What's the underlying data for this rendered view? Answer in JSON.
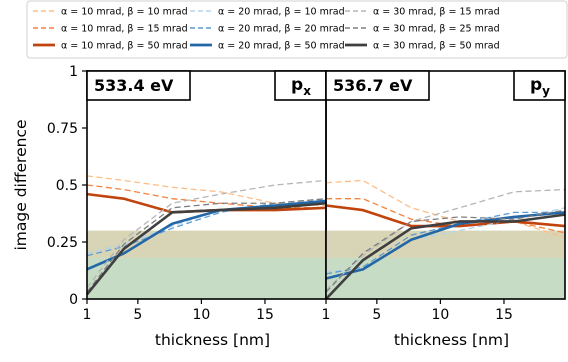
{
  "chart_data": [
    {
      "type": "line",
      "panel_label": "533.4 eV",
      "orbital_label": {
        "base": "p",
        "sub": "x"
      },
      "xlabel": "thickness [nm]",
      "ylabel": "image difference",
      "xlim": [
        1,
        19.8
      ],
      "ylim": [
        0,
        1
      ],
      "xticks": [
        1,
        5,
        10,
        15
      ],
      "yticks": [
        0,
        0.25,
        0.5,
        0.75,
        1
      ],
      "ytick_labels": [
        "0",
        "0.25",
        "0.5",
        "0.75",
        "1"
      ],
      "grid": false,
      "bands": [
        {
          "from": 0,
          "to": 0.3,
          "color": "#d8d5b7"
        },
        {
          "from": 0,
          "to": 0.18,
          "color": "#c7dcc5"
        }
      ],
      "x": [
        1,
        3.9,
        7.7,
        11.5,
        15.8,
        19.8
      ],
      "series": [
        {
          "name": "α = 10 mrad, β = 10 mrad",
          "color": "#fdbe85",
          "dash": "dashed",
          "width": 1.3,
          "values": [
            0.54,
            0.52,
            0.49,
            0.47,
            0.42,
            0.41
          ]
        },
        {
          "name": "α = 10 mrad, β = 15 mrad",
          "color": "#f4823c",
          "dash": "dashed",
          "width": 1.3,
          "values": [
            0.5,
            0.48,
            0.44,
            0.42,
            0.4,
            0.4
          ]
        },
        {
          "name": "α = 10 mrad, β = 50 mrad",
          "color": "#c1440e",
          "dash": "solid",
          "width": 2.6,
          "values": [
            0.46,
            0.44,
            0.38,
            0.39,
            0.39,
            0.4
          ]
        },
        {
          "name": "α = 20 mrad, β = 10 mrad",
          "color": "#b3d3ea",
          "dash": "dashed",
          "width": 1.3,
          "values": [
            0.2,
            0.24,
            0.32,
            0.39,
            0.4,
            0.44
          ]
        },
        {
          "name": "α = 20 mrad, β = 20 mrad",
          "color": "#5a9bd5",
          "dash": "dashed",
          "width": 1.3,
          "values": [
            0.19,
            0.23,
            0.31,
            0.38,
            0.42,
            0.44
          ]
        },
        {
          "name": "α = 20 mrad, β = 50 mrad",
          "color": "#2467a7",
          "dash": "solid",
          "width": 2.6,
          "values": [
            0.13,
            0.2,
            0.33,
            0.39,
            0.41,
            0.43
          ]
        },
        {
          "name": "α = 30 mrad, β = 15 mrad",
          "color": "#b5b5b5",
          "dash": "dashed",
          "width": 1.3,
          "values": [
            0.05,
            0.26,
            0.42,
            0.46,
            0.5,
            0.52
          ]
        },
        {
          "name": "α = 30 mrad, β = 25 mrad",
          "color": "#7e7e7e",
          "dash": "dashed",
          "width": 1.3,
          "values": [
            0.03,
            0.24,
            0.4,
            0.42,
            0.42,
            0.44
          ]
        },
        {
          "name": "α = 30 mrad, β = 50 mrad",
          "color": "#3f3f3f",
          "dash": "solid",
          "width": 2.6,
          "values": [
            0.02,
            0.22,
            0.38,
            0.39,
            0.4,
            0.42
          ]
        }
      ]
    },
    {
      "type": "line",
      "panel_label": "536.7 eV",
      "orbital_label": {
        "base": "p",
        "sub": "y"
      },
      "xlabel": "thickness [nm]",
      "xlim": [
        1,
        19.8
      ],
      "ylim": [
        0,
        1
      ],
      "xticks": [
        1,
        5,
        10,
        15
      ],
      "grid": false,
      "bands": [
        {
          "from": 0,
          "to": 0.3,
          "color": "#d8d5b7"
        },
        {
          "from": 0,
          "to": 0.18,
          "color": "#c7dcc5"
        }
      ],
      "x": [
        1,
        3.9,
        7.7,
        11.5,
        15.8,
        19.8
      ],
      "series": [
        {
          "name": "α = 10 mrad, β = 10 mrad",
          "color": "#fdbe85",
          "dash": "dashed",
          "width": 1.3,
          "values": [
            0.51,
            0.52,
            0.4,
            0.34,
            0.34,
            0.27
          ]
        },
        {
          "name": "α = 10 mrad, β = 15 mrad",
          "color": "#f4823c",
          "dash": "dashed",
          "width": 1.3,
          "values": [
            0.44,
            0.44,
            0.35,
            0.32,
            0.34,
            0.29
          ]
        },
        {
          "name": "α = 10 mrad, β = 50 mrad",
          "color": "#c1440e",
          "dash": "solid",
          "width": 2.6,
          "values": [
            0.41,
            0.39,
            0.32,
            0.32,
            0.34,
            0.32
          ]
        },
        {
          "name": "α = 20 mrad, β = 10 mrad",
          "color": "#b3d3ea",
          "dash": "dashed",
          "width": 1.3,
          "values": [
            0.12,
            0.13,
            0.26,
            0.3,
            0.35,
            0.4
          ]
        },
        {
          "name": "α = 20 mrad, β = 20 mrad",
          "color": "#5a9bd5",
          "dash": "dashed",
          "width": 1.3,
          "values": [
            0.11,
            0.14,
            0.28,
            0.33,
            0.38,
            0.38
          ]
        },
        {
          "name": "α = 20 mrad, β = 50 mrad",
          "color": "#2467a7",
          "dash": "solid",
          "width": 2.6,
          "values": [
            0.09,
            0.13,
            0.26,
            0.33,
            0.36,
            0.38
          ]
        },
        {
          "name": "α = 30 mrad, β = 15 mrad",
          "color": "#b5b5b5",
          "dash": "dashed",
          "width": 1.3,
          "values": [
            0.04,
            0.19,
            0.34,
            0.4,
            0.47,
            0.48
          ]
        },
        {
          "name": "α = 30 mrad, β = 25 mrad",
          "color": "#7e7e7e",
          "dash": "dashed",
          "width": 1.3,
          "values": [
            0.03,
            0.2,
            0.34,
            0.36,
            0.35,
            0.39
          ]
        },
        {
          "name": "α = 30 mrad, β = 50 mrad",
          "color": "#3f3f3f",
          "dash": "solid",
          "width": 2.6,
          "values": [
            0.0,
            0.17,
            0.31,
            0.34,
            0.34,
            0.37
          ]
        }
      ]
    }
  ],
  "legend": {
    "placement": "top",
    "items": [
      {
        "label": "α = 10 mrad, β = 10 mrad",
        "color": "#fdbe85",
        "dash": "dashed"
      },
      {
        "label": "α = 10 mrad, β = 15 mrad",
        "color": "#f4823c",
        "dash": "dashed"
      },
      {
        "label": "α = 10 mrad, β = 50 mrad",
        "color": "#c1440e",
        "dash": "solid"
      },
      {
        "label": "α = 20 mrad, β = 10 mrad",
        "color": "#b3d3ea",
        "dash": "dashed"
      },
      {
        "label": "α = 20 mrad, β = 20 mrad",
        "color": "#5a9bd5",
        "dash": "dashed"
      },
      {
        "label": "α = 20 mrad, β = 50 mrad",
        "color": "#2467a7",
        "dash": "solid"
      },
      {
        "label": "α = 30 mrad, β = 15 mrad",
        "color": "#b5b5b5",
        "dash": "dashed"
      },
      {
        "label": "α = 30 mrad, β = 25 mrad",
        "color": "#7e7e7e",
        "dash": "dashed"
      },
      {
        "label": "α = 30 mrad, β = 50 mrad",
        "color": "#3f3f3f",
        "dash": "solid"
      }
    ]
  }
}
